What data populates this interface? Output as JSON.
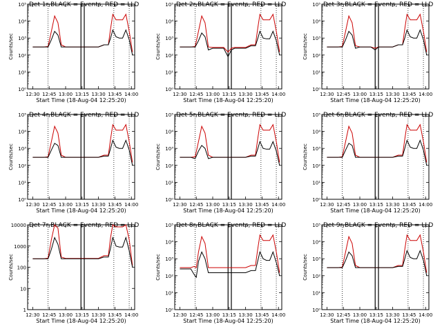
{
  "colors": {
    "events": "#000000",
    "lld": "#cc0000",
    "axes": "#000000",
    "background": "#ffffff"
  },
  "time_tick_labels": [
    "12:30",
    "12:45",
    "13:00",
    "13:15",
    "13:30",
    "13:45",
    "14:00"
  ],
  "chart_data": [
    {
      "type": "line",
      "title": "Det 1r BLACK = Events, RED = LLD",
      "ylabel": "Counts/sec",
      "xlabel": "Start Time (18-Aug-04 12:25:20)",
      "y_scale": "log",
      "ylim": [
        1,
        100000
      ],
      "y_tick_labels": [
        "10⁰",
        "10¹",
        "10²",
        "10³",
        "10⁴",
        "10⁵"
      ],
      "x_tick_labels": [
        "12:30",
        "12:45",
        "13:00",
        "13:15",
        "13:30",
        "13:45",
        "14:00"
      ],
      "x": [
        "12:30",
        "12:40",
        "12:44",
        "12:47",
        "12:50",
        "12:53",
        "12:56",
        "13:00",
        "13:10",
        "13:20",
        "13:30",
        "13:35",
        "13:39",
        "13:41",
        "13:43",
        "13:46",
        "13:49",
        "13:52",
        "13:55",
        "13:58",
        "14:01"
      ],
      "series": [
        {
          "name": "Events",
          "color": "#000000",
          "values": [
            300,
            300,
            300,
            800,
            2500,
            1500,
            300,
            300,
            300,
            300,
            300,
            400,
            400,
            1000,
            3000,
            1200,
            1000,
            1000,
            3000,
            800,
            100
          ]
        },
        {
          "name": "LLD",
          "color": "#cc0000",
          "values": [
            300,
            300,
            320,
            2500,
            20000,
            8000,
            400,
            300,
            300,
            300,
            300,
            400,
            400,
            3500,
            25000,
            12000,
            12000,
            12000,
            25000,
            2500,
            150
          ]
        }
      ],
      "vertical_lines": [
        "12:44",
        "13:14",
        "13:17",
        "13:44",
        "13:58"
      ]
    },
    {
      "type": "line",
      "title": "Det 2r BLACK = Events, RED = LLD",
      "ylabel": "Counts/sec",
      "xlabel": "Start Time (18-Aug-04 12:25:20)",
      "y_scale": "log",
      "ylim": [
        1,
        100000
      ],
      "y_tick_labels": [
        "10⁰",
        "10¹",
        "10²",
        "10³",
        "10⁴",
        "10⁵"
      ],
      "x_tick_labels": [
        "12:30",
        "12:45",
        "13:00",
        "13:15",
        "13:30",
        "13:45",
        "14:00"
      ],
      "x": [
        "12:30",
        "12:40",
        "12:44",
        "12:47",
        "12:50",
        "12:53",
        "12:56",
        "13:00",
        "13:10",
        "13:14",
        "13:17",
        "13:20",
        "13:30",
        "13:35",
        "13:39",
        "13:41",
        "13:43",
        "13:46",
        "13:49",
        "13:52",
        "13:55",
        "13:58",
        "14:01"
      ],
      "series": [
        {
          "name": "Events",
          "color": "#000000",
          "values": [
            300,
            300,
            300,
            700,
            2000,
            1200,
            200,
            250,
            250,
            80,
            200,
            250,
            250,
            350,
            350,
            900,
            2500,
            1000,
            900,
            900,
            2500,
            700,
            100
          ]
        },
        {
          "name": "LLD",
          "color": "#cc0000",
          "values": [
            300,
            300,
            320,
            2500,
            20000,
            8000,
            300,
            280,
            280,
            150,
            250,
            280,
            280,
            400,
            400,
            3500,
            25000,
            12000,
            12000,
            12000,
            25000,
            2500,
            150
          ]
        }
      ],
      "vertical_lines": [
        "12:44",
        "13:14",
        "13:17",
        "13:44",
        "13:58"
      ]
    },
    {
      "type": "line",
      "title": "Det 3r BLACK = Events, RED = LLD",
      "ylabel": "Counts/sec",
      "xlabel": "Start Time (18-Aug-04 12:25:20)",
      "y_scale": "log",
      "ylim": [
        1,
        100000
      ],
      "y_tick_labels": [
        "10⁰",
        "10¹",
        "10²",
        "10³",
        "10⁴",
        "10⁵"
      ],
      "x_tick_labels": [
        "12:30",
        "12:45",
        "13:00",
        "13:15",
        "13:30",
        "13:45",
        "14:00"
      ],
      "x": [
        "12:30",
        "12:40",
        "12:44",
        "12:47",
        "12:50",
        "12:53",
        "12:56",
        "13:00",
        "13:10",
        "13:14",
        "13:17",
        "13:20",
        "13:30",
        "13:35",
        "13:39",
        "13:41",
        "13:43",
        "13:46",
        "13:49",
        "13:52",
        "13:55",
        "13:58",
        "14:01"
      ],
      "series": [
        {
          "name": "Events",
          "color": "#000000",
          "values": [
            300,
            300,
            300,
            800,
            2500,
            1500,
            250,
            300,
            300,
            200,
            300,
            300,
            300,
            400,
            400,
            1000,
            3000,
            1200,
            1000,
            1000,
            3000,
            800,
            100
          ]
        },
        {
          "name": "LLD",
          "color": "#cc0000",
          "values": [
            300,
            300,
            320,
            2500,
            20000,
            8000,
            350,
            300,
            300,
            250,
            300,
            300,
            300,
            400,
            400,
            3500,
            25000,
            12000,
            12000,
            12000,
            25000,
            2500,
            150
          ]
        }
      ],
      "vertical_lines": [
        "12:44",
        "13:14",
        "13:17",
        "13:44",
        "13:58"
      ]
    },
    {
      "type": "line",
      "title": "Det 4r BLACK = Events, RED = LLD",
      "ylabel": "Counts/sec",
      "xlabel": "Start Time (18-Aug-04 12:25:20)",
      "y_scale": "log",
      "ylim": [
        1,
        100000
      ],
      "y_tick_labels": [
        "10⁰",
        "10¹",
        "10²",
        "10³",
        "10⁴",
        "10⁵"
      ],
      "x_tick_labels": [
        "12:30",
        "12:45",
        "13:00",
        "13:15",
        "13:30",
        "13:45",
        "14:00"
      ],
      "x": [
        "12:30",
        "12:40",
        "12:44",
        "12:47",
        "12:50",
        "12:53",
        "12:56",
        "13:00",
        "13:10",
        "13:20",
        "13:30",
        "13:35",
        "13:39",
        "13:41",
        "13:43",
        "13:46",
        "13:49",
        "13:52",
        "13:55",
        "13:58",
        "14:01"
      ],
      "series": [
        {
          "name": "Events",
          "color": "#000000",
          "values": [
            300,
            300,
            300,
            800,
            2000,
            1500,
            300,
            300,
            300,
            300,
            300,
            350,
            350,
            1000,
            3000,
            1200,
            1000,
            1000,
            3000,
            800,
            100
          ]
        },
        {
          "name": "LLD",
          "color": "#cc0000",
          "values": [
            300,
            300,
            320,
            2500,
            20000,
            8000,
            400,
            300,
            300,
            300,
            300,
            400,
            400,
            3500,
            25000,
            12000,
            12000,
            12000,
            25000,
            2500,
            150
          ]
        }
      ],
      "vertical_lines": [
        "12:44",
        "13:14",
        "13:17",
        "13:44",
        "13:58"
      ]
    },
    {
      "type": "line",
      "title": "Det 5r BLACK = Events, RED = LLD",
      "ylabel": "Counts/sec",
      "xlabel": "Start Time (18-Aug-04 12:25:20)",
      "y_scale": "log",
      "ylim": [
        1,
        100000
      ],
      "y_tick_labels": [
        "10⁰",
        "10¹",
        "10²",
        "10³",
        "10⁴",
        "10⁵"
      ],
      "x_tick_labels": [
        "12:30",
        "12:45",
        "13:00",
        "13:15",
        "13:30",
        "13:45",
        "14:00"
      ],
      "x": [
        "12:30",
        "12:40",
        "12:44",
        "12:47",
        "12:50",
        "12:53",
        "12:56",
        "13:00",
        "13:10",
        "13:20",
        "13:30",
        "13:35",
        "13:39",
        "13:41",
        "13:43",
        "13:46",
        "13:49",
        "13:52",
        "13:55",
        "13:58",
        "14:01"
      ],
      "series": [
        {
          "name": "Events",
          "color": "#000000",
          "values": [
            300,
            300,
            250,
            700,
            1500,
            1000,
            250,
            300,
            300,
            300,
            300,
            350,
            350,
            900,
            2500,
            1000,
            900,
            900,
            2500,
            700,
            100
          ]
        },
        {
          "name": "LLD",
          "color": "#cc0000",
          "values": [
            300,
            300,
            320,
            2500,
            20000,
            8000,
            400,
            300,
            300,
            300,
            300,
            400,
            400,
            3500,
            25000,
            12000,
            12000,
            12000,
            25000,
            2500,
            150
          ]
        }
      ],
      "vertical_lines": [
        "12:44",
        "13:14",
        "13:17",
        "13:44",
        "13:58"
      ]
    },
    {
      "type": "line",
      "title": "Det 6r BLACK = Events, RED = LLD",
      "ylabel": "Counts/sec",
      "xlabel": "Start Time (18-Aug-04 12:25:20)",
      "y_scale": "log",
      "ylim": [
        1,
        100000
      ],
      "y_tick_labels": [
        "10⁰",
        "10¹",
        "10²",
        "10³",
        "10⁴",
        "10⁵"
      ],
      "x_tick_labels": [
        "12:30",
        "12:45",
        "13:00",
        "13:15",
        "13:30",
        "13:45",
        "14:00"
      ],
      "x": [
        "12:30",
        "12:40",
        "12:44",
        "12:47",
        "12:50",
        "12:53",
        "12:56",
        "13:00",
        "13:10",
        "13:20",
        "13:30",
        "13:35",
        "13:39",
        "13:41",
        "13:43",
        "13:46",
        "13:49",
        "13:52",
        "13:55",
        "13:58",
        "14:01"
      ],
      "series": [
        {
          "name": "Events",
          "color": "#000000",
          "values": [
            300,
            300,
            300,
            800,
            2000,
            1500,
            300,
            300,
            300,
            300,
            300,
            350,
            350,
            1000,
            3000,
            1200,
            1000,
            1000,
            3000,
            800,
            100
          ]
        },
        {
          "name": "LLD",
          "color": "#cc0000",
          "values": [
            300,
            300,
            320,
            2500,
            20000,
            8000,
            400,
            300,
            300,
            300,
            300,
            400,
            400,
            3500,
            25000,
            12000,
            12000,
            12000,
            25000,
            2500,
            150
          ]
        }
      ],
      "vertical_lines": [
        "12:44",
        "13:14",
        "13:17",
        "13:44",
        "13:58"
      ]
    },
    {
      "type": "line",
      "title": "Det 7r BLACK = Events, RED = LLD",
      "ylabel": "Counts/sec",
      "xlabel": "Start Time (18-Aug-04 12:25:20)",
      "y_scale": "log",
      "ylim": [
        1,
        10000
      ],
      "y_tick_labels": [
        "1",
        "10",
        "100",
        "1000",
        "10000"
      ],
      "x_tick_labels": [
        "12:30",
        "12:45",
        "13:00",
        "13:15",
        "13:30",
        "13:45",
        "14:00"
      ],
      "x": [
        "12:30",
        "12:40",
        "12:44",
        "12:47",
        "12:50",
        "12:53",
        "12:56",
        "13:00",
        "13:10",
        "13:20",
        "13:30",
        "13:35",
        "13:39",
        "13:41",
        "13:43",
        "13:46",
        "13:49",
        "13:52",
        "13:55",
        "13:58",
        "14:01"
      ],
      "series": [
        {
          "name": "Events",
          "color": "#000000",
          "values": [
            250,
            250,
            250,
            700,
            2500,
            1200,
            250,
            250,
            250,
            250,
            250,
            300,
            300,
            800,
            2500,
            1000,
            900,
            900,
            2500,
            600,
            100
          ]
        },
        {
          "name": "LLD",
          "color": "#cc0000",
          "values": [
            250,
            250,
            270,
            2000,
            10000,
            7000,
            300,
            260,
            260,
            260,
            260,
            350,
            350,
            2500,
            10000,
            8000,
            8000,
            8000,
            10000,
            2000,
            120
          ]
        }
      ],
      "vertical_lines": [
        "12:44",
        "13:14",
        "13:17",
        "13:44",
        "13:58"
      ]
    },
    {
      "type": "line",
      "title": "Det 8r BLACK = Events, RED = LLD",
      "ylabel": "Counts/sec",
      "xlabel": "Start Time (18-Aug-04 12:25:20)",
      "y_scale": "log",
      "ylim": [
        1,
        100000
      ],
      "y_tick_labels": [
        "10⁰",
        "10¹",
        "10²",
        "10³",
        "10⁴",
        "10⁵"
      ],
      "x_tick_labels": [
        "12:30",
        "12:45",
        "13:00",
        "13:15",
        "13:30",
        "13:45",
        "14:00"
      ],
      "x": [
        "12:30",
        "12:40",
        "12:43",
        "12:45",
        "12:47",
        "12:50",
        "12:53",
        "12:56",
        "13:00",
        "13:10",
        "13:20",
        "13:30",
        "13:35",
        "13:39",
        "13:41",
        "13:43",
        "13:46",
        "13:49",
        "13:52",
        "13:55",
        "13:58",
        "14:01"
      ],
      "series": [
        {
          "name": "Events",
          "color": "#000000",
          "values": [
            250,
            250,
            120,
            80,
            700,
            2500,
            1000,
            150,
            150,
            150,
            150,
            150,
            200,
            200,
            700,
            2500,
            1000,
            800,
            800,
            2500,
            600,
            100
          ]
        },
        {
          "name": "LLD",
          "color": "#cc0000",
          "values": [
            300,
            300,
            350,
            300,
            2500,
            20000,
            8000,
            300,
            300,
            300,
            300,
            300,
            400,
            400,
            3500,
            25000,
            12000,
            12000,
            12000,
            25000,
            2500,
            150
          ]
        }
      ],
      "vertical_lines": [
        "12:44",
        "13:14",
        "13:17",
        "13:44",
        "13:58"
      ]
    },
    {
      "type": "line",
      "title": "Det 9r BLACK = Events, RED = LLD",
      "ylabel": "Counts/sec",
      "xlabel": "Start Time (18-Aug-04 12:25:20)",
      "y_scale": "log",
      "ylim": [
        1,
        100000
      ],
      "y_tick_labels": [
        "10⁰",
        "10¹",
        "10²",
        "10³",
        "10⁴",
        "10⁵"
      ],
      "x_tick_labels": [
        "12:30",
        "12:45",
        "13:00",
        "13:15",
        "13:30",
        "13:45",
        "14:00"
      ],
      "x": [
        "12:30",
        "12:40",
        "12:44",
        "12:47",
        "12:50",
        "12:53",
        "12:56",
        "13:00",
        "13:10",
        "13:20",
        "13:30",
        "13:35",
        "13:39",
        "13:41",
        "13:43",
        "13:46",
        "13:49",
        "13:52",
        "13:55",
        "13:58",
        "14:01"
      ],
      "series": [
        {
          "name": "Events",
          "color": "#000000",
          "values": [
            300,
            300,
            300,
            800,
            2500,
            1500,
            300,
            300,
            300,
            300,
            300,
            350,
            350,
            1000,
            3000,
            1200,
            1000,
            1000,
            3000,
            800,
            100
          ]
        },
        {
          "name": "LLD",
          "color": "#cc0000",
          "values": [
            300,
            300,
            320,
            2500,
            20000,
            8000,
            400,
            300,
            300,
            300,
            300,
            400,
            400,
            3500,
            25000,
            12000,
            12000,
            12000,
            25000,
            2500,
            150
          ]
        }
      ],
      "vertical_lines": [
        "12:44",
        "13:14",
        "13:17",
        "13:44",
        "13:58"
      ]
    }
  ]
}
